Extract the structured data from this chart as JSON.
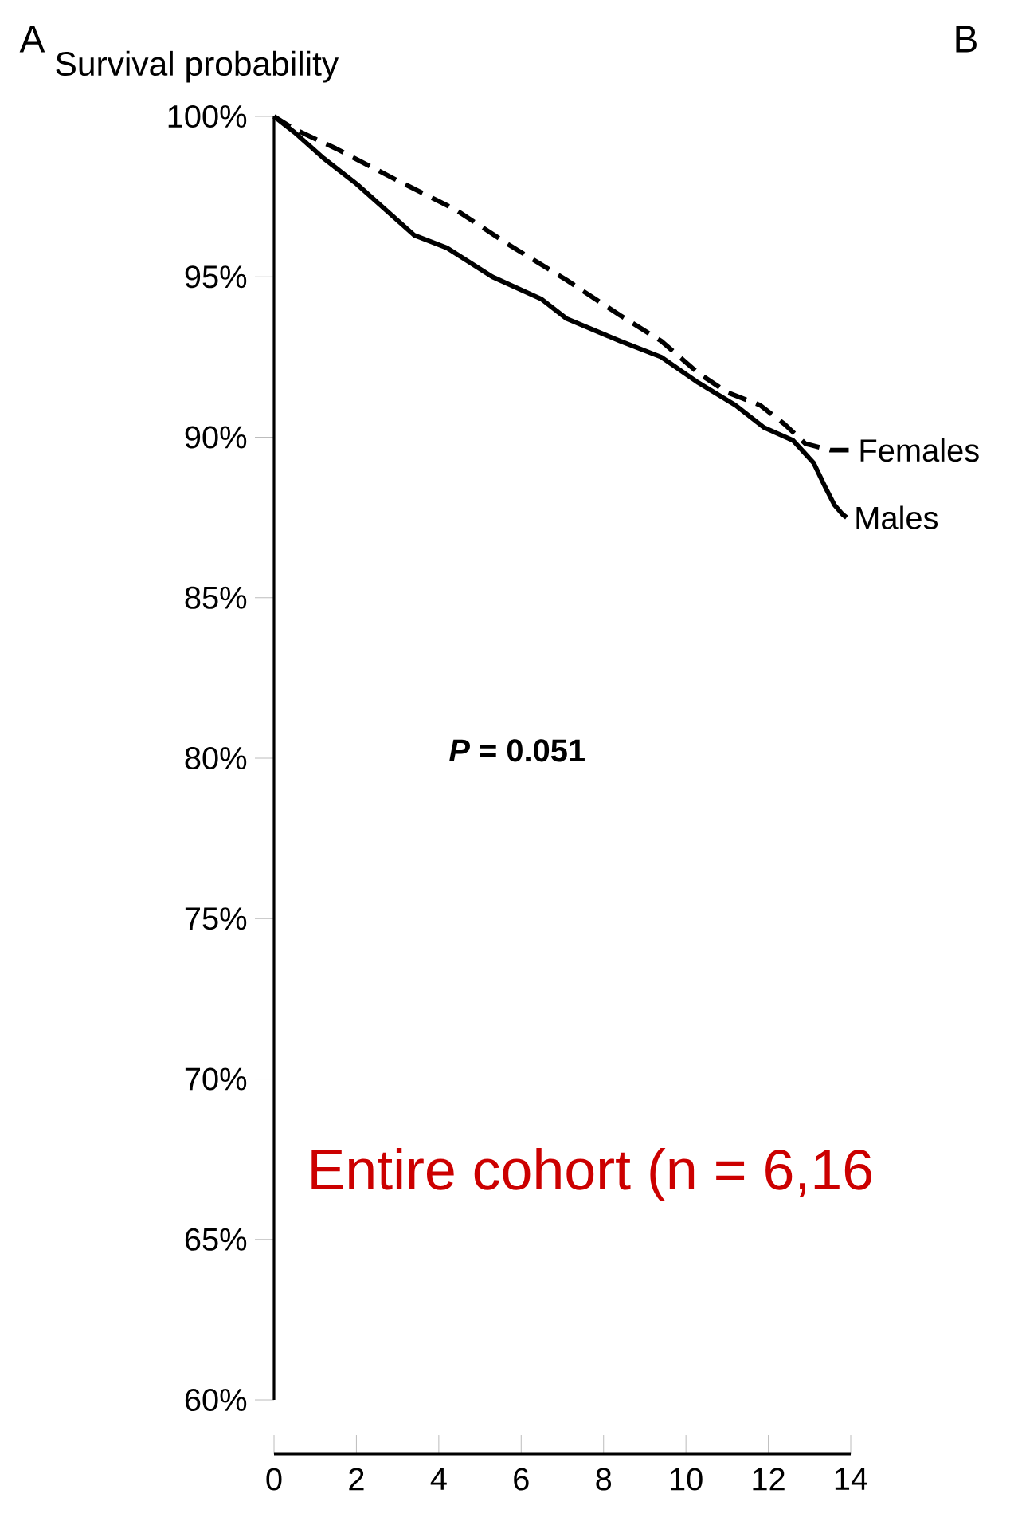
{
  "chart_data": {
    "type": "line",
    "ylabel": "Survival probability",
    "xlim": [
      0,
      14
    ],
    "xticks": [
      0,
      2,
      4,
      6,
      8,
      10,
      12,
      14
    ],
    "ylim": [
      60,
      100
    ],
    "yticks": [
      {
        "value": 60,
        "label": "60%"
      },
      {
        "value": 65,
        "label": "65%"
      },
      {
        "value": 70,
        "label": "70%"
      },
      {
        "value": 75,
        "label": "75%"
      },
      {
        "value": 80,
        "label": "80%"
      },
      {
        "value": 85,
        "label": "85%"
      },
      {
        "value": 90,
        "label": "90%"
      },
      {
        "value": 95,
        "label": "95%"
      },
      {
        "value": 100,
        "label": "100%"
      }
    ],
    "grid": false,
    "legend": false,
    "series": [
      {
        "name": "Females",
        "color": "#000000",
        "line_style": "dashed",
        "x": [
          0,
          0.5,
          1.5,
          3.0,
          4.4,
          5.7,
          7.1,
          8.4,
          9.4,
          10.3,
          11.0,
          11.8,
          12.4,
          12.9,
          13.5,
          14
        ],
        "values": [
          100,
          99.6,
          99.0,
          98.0,
          97.1,
          96.0,
          94.9,
          93.8,
          93.0,
          92.0,
          91.4,
          91.0,
          90.4,
          89.8,
          89.6,
          89.6
        ]
      },
      {
        "name": "Males",
        "color": "#000000",
        "line_style": "solid",
        "x": [
          0,
          0.5,
          1.2,
          2,
          3.4,
          4.2,
          5.3,
          6.5,
          7.1,
          8.4,
          9.4,
          10.3,
          11.2,
          11.9,
          12.6,
          13.1,
          13.4,
          13.6,
          13.8,
          13.9
        ],
        "values": [
          100,
          99.5,
          98.7,
          97.9,
          96.3,
          95.9,
          95.0,
          94.3,
          93.7,
          93.0,
          92.5,
          91.7,
          91.0,
          90.3,
          89.9,
          89.2,
          88.4,
          87.9,
          87.6,
          87.5
        ]
      }
    ],
    "annotations": [
      "A",
      "B",
      "*P* = 0.051",
      "Entire cohort (n = 6,16"
    ]
  }
}
